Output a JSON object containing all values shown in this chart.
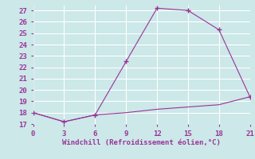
{
  "xlabel": "Windchill (Refroidissement éolien,°C)",
  "line1_x": [
    0,
    3,
    6,
    9,
    12,
    15,
    18,
    21
  ],
  "line1_y": [
    18.0,
    17.2,
    17.8,
    22.5,
    27.2,
    27.0,
    25.3,
    19.4
  ],
  "line2_x": [
    0,
    3,
    6,
    9,
    12,
    15,
    18,
    21
  ],
  "line2_y": [
    18.0,
    17.2,
    17.8,
    18.0,
    18.3,
    18.5,
    18.7,
    19.4
  ],
  "xlim": [
    0,
    21
  ],
  "ylim": [
    17,
    27.5
  ],
  "yticks": [
    17,
    18,
    19,
    20,
    21,
    22,
    23,
    24,
    25,
    26,
    27
  ],
  "xticks": [
    0,
    3,
    6,
    9,
    12,
    15,
    18,
    21
  ],
  "line_color": "#993399",
  "bg_color": "#cce8e8",
  "grid_color": "#ffffff",
  "tick_label_color": "#993399",
  "xlabel_color": "#993399",
  "marker": "+"
}
